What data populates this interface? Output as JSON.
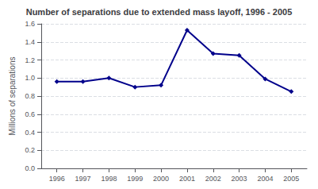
{
  "chart_data": {
    "type": "line",
    "title": "Number of separations due to extended mass layoff, 1996 - 2005",
    "ylabel": "Millions of separations",
    "x": [
      1996,
      1997,
      1998,
      1999,
      2000,
      2001,
      2002,
      2003,
      2004,
      2005
    ],
    "values": [
      0.96,
      0.96,
      1.0,
      0.9,
      0.92,
      1.53,
      1.27,
      1.25,
      0.99,
      0.85
    ],
    "color": "#00008B",
    "marker": "diamond",
    "xlim": [
      1995.4,
      2005.6
    ],
    "xticks": [
      1996,
      1997,
      1998,
      1999,
      2000,
      2001,
      2002,
      2003,
      2004,
      2005
    ],
    "ylim": [
      0.0,
      1.6
    ],
    "yticks": [
      {
        "value": 0,
        "label": "0.0"
      },
      0.2,
      0.4,
      0.6,
      0.8,
      {
        "value": 1,
        "label": "1.0"
      },
      1.2,
      1.4,
      1.6
    ],
    "grid": true
  }
}
